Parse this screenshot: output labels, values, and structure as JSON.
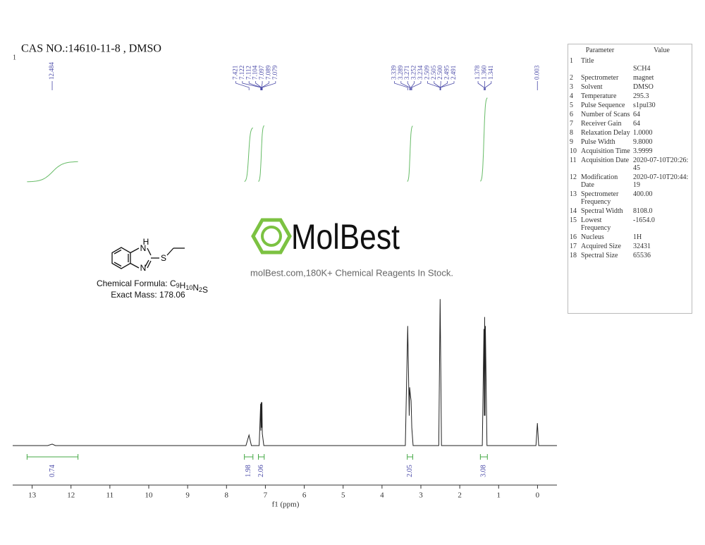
{
  "page_number": "1",
  "title": "CAS NO.:14610-11-8 , DMSO",
  "logo": "MolBest",
  "slogan": "molBest.com,180K+ Chemical Reagents In Stock.",
  "molecule": {
    "atom_labels": [
      "H",
      "N",
      "N",
      "S"
    ],
    "formula_label": "Chemical Formula:",
    "formula": [
      {
        "el": "C",
        "n": "9"
      },
      {
        "el": "H",
        "n": "10"
      },
      {
        "el": "N",
        "n": "2"
      },
      {
        "el": "S",
        "n": ""
      }
    ],
    "exact_mass": "Exact Mass: 178.06"
  },
  "parameters": {
    "header": [
      "Parameter",
      "Value"
    ],
    "rows": [
      [
        "1",
        "Title",
        "SCH4"
      ],
      [
        "2",
        "Spectrometer",
        "magnet"
      ],
      [
        "3",
        "Solvent",
        "DMSO"
      ],
      [
        "4",
        "Temperature",
        "295.3"
      ],
      [
        "5",
        "Pulse Sequence",
        "s1pul30"
      ],
      [
        "6",
        "Number of Scans",
        "64"
      ],
      [
        "7",
        "Receiver Gain",
        "64"
      ],
      [
        "8",
        "Relaxation Delay",
        "1.0000"
      ],
      [
        "9",
        "Pulse Width",
        "9.8000"
      ],
      [
        "10",
        "Acquisition Time",
        "3.9999"
      ],
      [
        "11",
        "Acquisition Date",
        "2020-07-10T20:26:45"
      ],
      [
        "12",
        "Modification Date",
        "2020-07-10T20:44:19"
      ],
      [
        "13",
        "Spectrometer Frequency",
        "400.00"
      ],
      [
        "14",
        "Spectral Width",
        "8108.0"
      ],
      [
        "15",
        "Lowest Frequency",
        "-1654.0"
      ],
      [
        "16",
        "Nucleus",
        "1H"
      ],
      [
        "17",
        "Acquired Size",
        "32431"
      ],
      [
        "18",
        "Spectral Size",
        "65536"
      ]
    ]
  },
  "chart_data": {
    "type": "line",
    "xlabel": "f1 (ppm)",
    "color": "#222222",
    "xlim": [
      13.5,
      -0.5
    ],
    "xticks": [
      13,
      12,
      11,
      10,
      9,
      8,
      7,
      6,
      5,
      4,
      3,
      2,
      1,
      0
    ],
    "ylim": [
      0,
      100
    ],
    "x": [
      13.5,
      12.6,
      12.484,
      12.4,
      7.5,
      7.421,
      7.36,
      7.16,
      7.122,
      7.116,
      7.104,
      7.097,
      7.089,
      7.079,
      7.04,
      3.4,
      3.339,
      3.3,
      3.289,
      3.271,
      3.252,
      3.234,
      3.2,
      2.54,
      2.505,
      2.47,
      1.42,
      1.378,
      1.369,
      1.36,
      1.35,
      1.341,
      1.3,
      0.04,
      0.003,
      -0.03,
      -0.5
    ],
    "values": [
      0,
      0,
      1,
      0,
      0,
      7,
      0,
      0,
      28,
      10,
      29,
      12,
      29,
      8,
      0,
      0,
      80,
      20,
      39,
      34,
      30,
      12,
      0,
      0,
      98,
      0,
      0,
      78,
      20,
      86,
      20,
      80,
      0,
      0,
      15,
      0,
      0
    ],
    "peak_labels": [
      [
        "12.484"
      ],
      [
        "7.421",
        "7.122",
        "7.112",
        "7.104",
        "7.097",
        "7.089",
        "7.079"
      ],
      [
        "3.339",
        "3.289",
        "3.271",
        "3.252",
        "3.234",
        "2.509",
        "2.505",
        "2.500",
        "2.495",
        "2.491"
      ],
      [
        "1.378",
        "1.360",
        "1.341"
      ],
      [
        "0.003"
      ]
    ],
    "integrals": [
      {
        "from": 13.13,
        "to": 11.82,
        "value": 0.74
      },
      {
        "from": 7.54,
        "to": 7.32,
        "value": 1.98
      },
      {
        "from": 7.18,
        "to": 7.03,
        "value": 2.06
      },
      {
        "from": 3.35,
        "to": 3.21,
        "value": 2.05
      },
      {
        "from": 1.47,
        "to": 1.29,
        "value": 3.08
      }
    ]
  }
}
